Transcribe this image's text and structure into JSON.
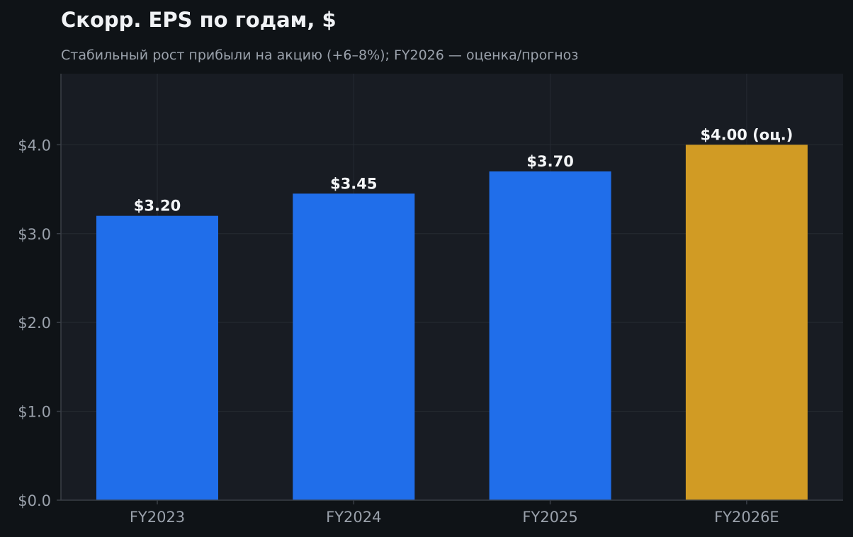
{
  "chart_data": {
    "type": "bar",
    "title": "Скорр. EPS по годам, $",
    "subtitle": "Стабильный рост прибыли на акцию (+6–8%); FY2026 — оценка/прогноз",
    "categories": [
      "FY2023",
      "FY2024",
      "FY2025",
      "FY2026E"
    ],
    "values": [
      3.2,
      3.45,
      3.7,
      4.0
    ],
    "data_labels": [
      "$3.20",
      "$3.45",
      "$3.70",
      "$4.00 (оц.)"
    ],
    "is_estimate": [
      false,
      false,
      false,
      true
    ],
    "ylim": [
      0,
      4.8
    ],
    "yticks": [
      0,
      1,
      2,
      3,
      4
    ],
    "ytick_labels": [
      "$0.0",
      "$1.0",
      "$2.0",
      "$3.0",
      "$4.0"
    ],
    "xlabel": "",
    "ylabel": "",
    "grid": true,
    "legend": "none"
  },
  "colors": {
    "background": "#0f1317",
    "plot_background": "#181c23",
    "grid": "#262b33",
    "axis": "#3a3f47",
    "actual_bar": "#206eea",
    "estimate_bar": "#d19b24",
    "title": "#f0f2f5",
    "subtitle": "#9aa1ab",
    "tick_label": "#9aa1ab",
    "data_label": "#f4f6f8"
  }
}
